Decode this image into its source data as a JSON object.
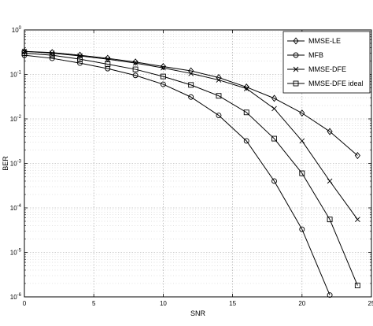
{
  "chart_data": {
    "type": "line",
    "title": "",
    "xlabel": "SNR",
    "ylabel": "BER",
    "xlim": [
      0,
      25
    ],
    "ylim": [
      1e-06,
      1
    ],
    "yscale": "log",
    "grid": true,
    "legend_position": "top-right",
    "xticks": [
      "0",
      "5",
      "10",
      "15",
      "20",
      "25"
    ],
    "yticks": [
      {
        "base": "10",
        "exp": "0"
      },
      {
        "base": "10",
        "exp": "-1"
      },
      {
        "base": "10",
        "exp": "-2"
      },
      {
        "base": "10",
        "exp": "-3"
      },
      {
        "base": "10",
        "exp": "-4"
      },
      {
        "base": "10",
        "exp": "-5"
      },
      {
        "base": "10",
        "exp": "-6"
      }
    ],
    "series": [
      {
        "name": "MMSE-LE",
        "marker": "diamond",
        "x": [
          0,
          2,
          4,
          6,
          8,
          10,
          12,
          14,
          16,
          18,
          20,
          22,
          24
        ],
        "y": [
          0.33,
          0.31,
          0.27,
          0.23,
          0.19,
          0.15,
          0.12,
          0.085,
          0.052,
          0.029,
          0.0135,
          0.0052,
          0.0015
        ]
      },
      {
        "name": "MFB",
        "marker": "circle",
        "x": [
          0,
          2,
          4,
          6,
          8,
          10,
          12,
          14,
          16,
          18,
          20,
          22
        ],
        "y": [
          0.27,
          0.23,
          0.18,
          0.135,
          0.095,
          0.06,
          0.031,
          0.012,
          0.0032,
          0.0004,
          3.3e-05,
          1.1e-06
        ]
      },
      {
        "name": "MMSE-DFE",
        "marker": "x",
        "x": [
          0,
          2,
          4,
          6,
          8,
          10,
          12,
          14,
          16,
          18,
          20,
          22,
          24
        ],
        "y": [
          0.33,
          0.3,
          0.26,
          0.22,
          0.18,
          0.14,
          0.105,
          0.075,
          0.048,
          0.017,
          0.0032,
          0.0004,
          5.5e-05
        ]
      },
      {
        "name": "MMSE-DFE ideal",
        "marker": "square",
        "x": [
          0,
          2,
          4,
          6,
          8,
          10,
          12,
          14,
          16,
          18,
          20,
          22,
          24
        ],
        "y": [
          0.3,
          0.27,
          0.22,
          0.17,
          0.13,
          0.09,
          0.058,
          0.033,
          0.014,
          0.0036,
          0.0006,
          5.5e-05,
          1.8e-06
        ]
      }
    ]
  }
}
